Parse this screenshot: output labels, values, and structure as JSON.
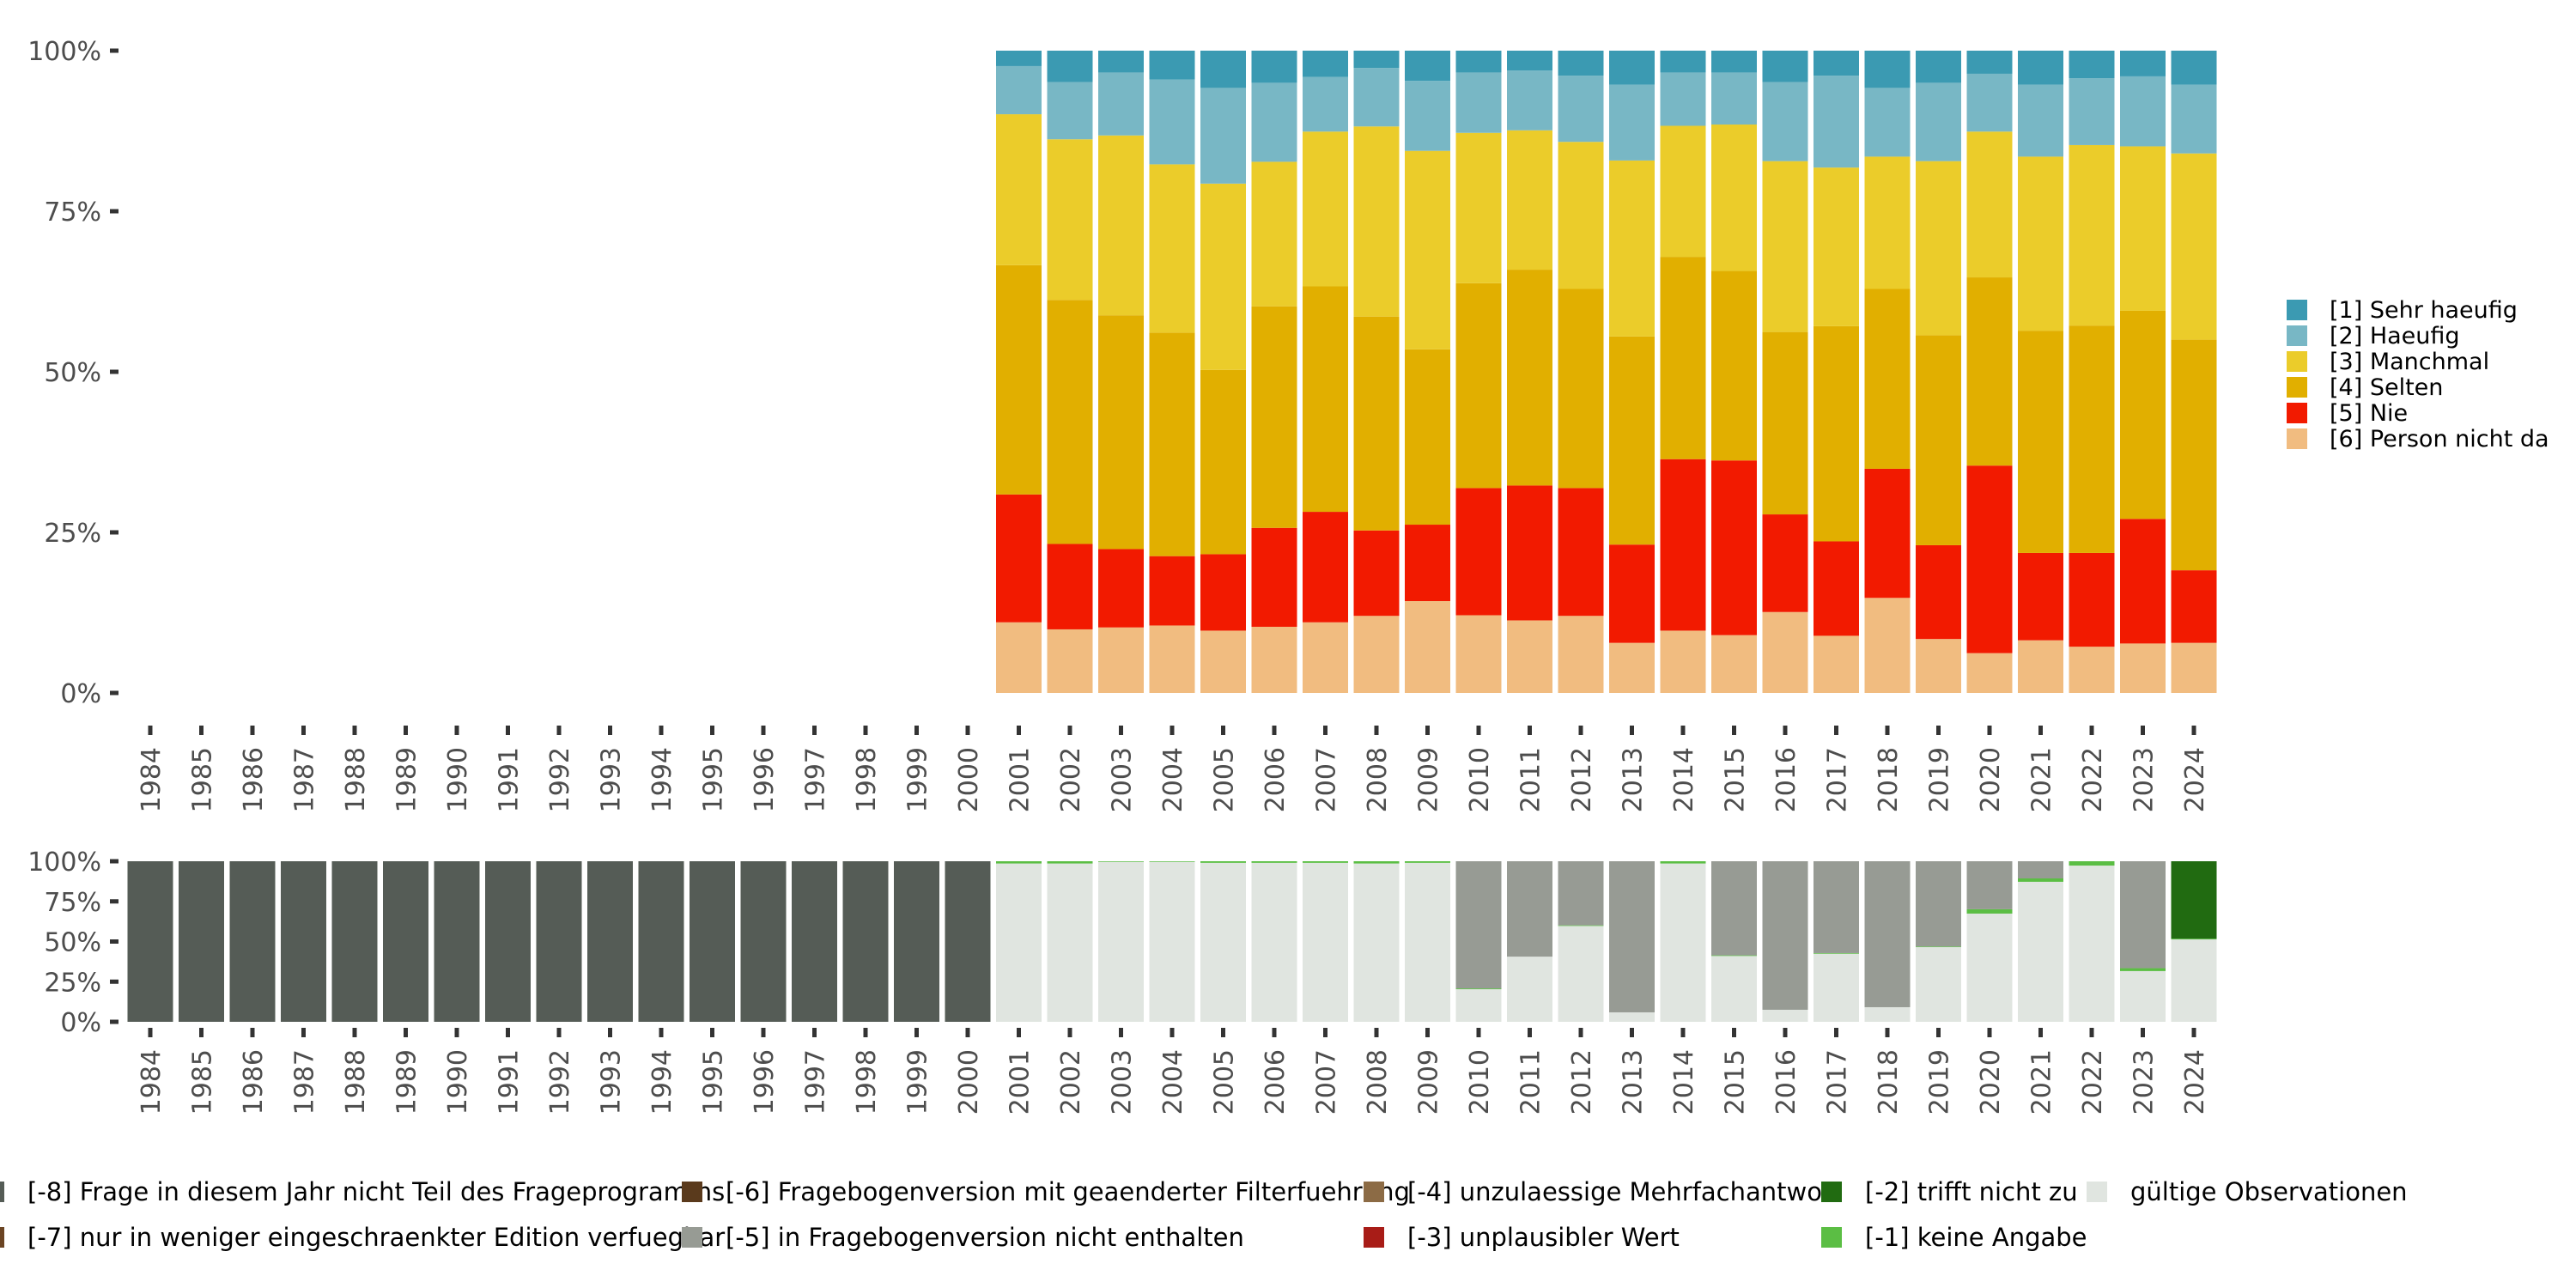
{
  "chart_data": [
    {
      "type": "bar",
      "stacked": true,
      "normalized": true,
      "title": "",
      "xlabel": "",
      "ylabel": "",
      "ylim": [
        0,
        100
      ],
      "yticks": [
        "0%",
        "25%",
        "50%",
        "75%",
        "100%"
      ],
      "grid": false,
      "legend_position": "right",
      "categories": [
        "1984",
        "1985",
        "1986",
        "1987",
        "1988",
        "1989",
        "1990",
        "1991",
        "1992",
        "1993",
        "1994",
        "1995",
        "1996",
        "1997",
        "1998",
        "1999",
        "2000",
        "2001",
        "2002",
        "2003",
        "2004",
        "2005",
        "2006",
        "2007",
        "2008",
        "2009",
        "2010",
        "2011",
        "2012",
        "2013",
        "2014",
        "2015",
        "2016",
        "2017",
        "2018",
        "2019",
        "2020",
        "2021",
        "2022",
        "2023",
        "2024"
      ],
      "series": [
        {
          "name": "[6] Person nicht da",
          "color": "#F1BC80",
          "values": [
            null,
            null,
            null,
            null,
            null,
            null,
            null,
            null,
            null,
            null,
            null,
            null,
            null,
            null,
            null,
            null,
            null,
            11.0,
            9.9,
            10.2,
            10.5,
            9.7,
            10.3,
            11.0,
            12.0,
            14.3,
            12.1,
            11.3,
            12.0,
            7.8,
            9.7,
            9.0,
            12.6,
            8.9,
            14.8,
            8.4,
            6.2,
            8.2,
            7.2,
            7.7,
            7.8
          ]
        },
        {
          "name": "[5] Nie",
          "color": "#F21A00",
          "values": [
            null,
            null,
            null,
            null,
            null,
            null,
            null,
            null,
            null,
            null,
            null,
            null,
            null,
            null,
            null,
            null,
            null,
            19.9,
            13.3,
            12.2,
            10.8,
            11.9,
            15.4,
            17.2,
            13.3,
            11.9,
            19.8,
            21.0,
            19.9,
            15.3,
            26.7,
            27.2,
            15.2,
            14.7,
            20.1,
            14.6,
            29.2,
            13.6,
            14.6,
            19.4,
            11.3
          ]
        },
        {
          "name": "[4] Selten",
          "color": "#E1AF00",
          "values": [
            null,
            null,
            null,
            null,
            null,
            null,
            null,
            null,
            null,
            null,
            null,
            null,
            null,
            null,
            null,
            null,
            null,
            35.7,
            38.0,
            36.4,
            34.8,
            28.7,
            34.5,
            35.1,
            33.3,
            27.3,
            31.9,
            33.6,
            31.0,
            32.4,
            31.5,
            29.5,
            28.4,
            33.5,
            28.0,
            32.7,
            29.3,
            34.6,
            35.4,
            32.4,
            35.9
          ]
        },
        {
          "name": "[3] Manchmal",
          "color": "#EBCC2A",
          "values": [
            null,
            null,
            null,
            null,
            null,
            null,
            null,
            null,
            null,
            null,
            null,
            null,
            null,
            null,
            null,
            null,
            null,
            23.5,
            25.0,
            28.0,
            26.2,
            29.0,
            22.5,
            24.1,
            29.6,
            30.9,
            23.4,
            21.7,
            22.9,
            27.4,
            20.4,
            22.8,
            26.6,
            24.7,
            20.6,
            27.1,
            22.7,
            27.1,
            28.1,
            25.6,
            29.0
          ]
        },
        {
          "name": "[2] Haeufig",
          "color": "#78B7C5",
          "values": [
            null,
            null,
            null,
            null,
            null,
            null,
            null,
            null,
            null,
            null,
            null,
            null,
            null,
            null,
            null,
            null,
            null,
            7.5,
            8.9,
            9.8,
            13.2,
            14.9,
            12.3,
            8.5,
            9.1,
            10.9,
            9.4,
            9.3,
            10.3,
            11.8,
            8.3,
            8.1,
            12.3,
            14.3,
            10.7,
            12.2,
            9.0,
            11.2,
            10.4,
            10.9,
            10.7
          ]
        },
        {
          "name": "[1] Sehr haeufig",
          "color": "#3B9AB2",
          "values": [
            null,
            null,
            null,
            null,
            null,
            null,
            null,
            null,
            null,
            null,
            null,
            null,
            null,
            null,
            null,
            null,
            null,
            2.4,
            4.9,
            3.4,
            4.5,
            5.8,
            5.0,
            4.1,
            2.7,
            4.7,
            3.4,
            3.1,
            3.9,
            5.3,
            3.4,
            3.4,
            4.9,
            3.9,
            5.8,
            5.0,
            3.6,
            5.3,
            4.3,
            4.0,
            5.3
          ]
        }
      ],
      "legend": [
        {
          "label": "[1] Sehr haeufig",
          "color": "#3B9AB2"
        },
        {
          "label": "[2] Haeufig",
          "color": "#78B7C5"
        },
        {
          "label": "[3] Manchmal",
          "color": "#EBCC2A"
        },
        {
          "label": "[4] Selten",
          "color": "#E1AF00"
        },
        {
          "label": "[5] Nie",
          "color": "#F21A00"
        },
        {
          "label": "[6] Person nicht da",
          "color": "#F1BC80"
        }
      ]
    },
    {
      "type": "bar",
      "stacked": true,
      "normalized": true,
      "title": "",
      "xlabel": "",
      "ylabel": "",
      "ylim": [
        0,
        100
      ],
      "yticks": [
        "0%",
        "25%",
        "50%",
        "75%",
        "100%"
      ],
      "grid": false,
      "legend_position": "bottom",
      "categories": [
        "1984",
        "1985",
        "1986",
        "1987",
        "1988",
        "1989",
        "1990",
        "1991",
        "1992",
        "1993",
        "1994",
        "1995",
        "1996",
        "1997",
        "1998",
        "1999",
        "2000",
        "2001",
        "2002",
        "2003",
        "2004",
        "2005",
        "2006",
        "2007",
        "2008",
        "2009",
        "2010",
        "2011",
        "2012",
        "2013",
        "2014",
        "2015",
        "2016",
        "2017",
        "2018",
        "2019",
        "2020",
        "2021",
        "2022",
        "2023",
        "2024"
      ],
      "series": [
        {
          "name": "gültige Observationen",
          "color": "#E0E5E0",
          "values": [
            0,
            0,
            0,
            0,
            0,
            0,
            0,
            0,
            0,
            0,
            0,
            0,
            0,
            0,
            0,
            0,
            0,
            98.6,
            98.6,
            99.6,
            99.6,
            99.0,
            99.0,
            99.0,
            98.6,
            99.0,
            20.3,
            40.6,
            59.7,
            5.9,
            98.6,
            41.0,
            7.5,
            42.4,
            9.1,
            46.5,
            67.4,
            87.2,
            97.3,
            31.6,
            51.3
          ]
        },
        {
          "name": "[-1] keine Angabe",
          "color": "#5BBE44",
          "values": [
            0,
            0,
            0,
            0,
            0,
            0,
            0,
            0,
            0,
            0,
            0,
            0,
            0,
            0,
            0,
            0,
            0,
            1.4,
            1.4,
            0.4,
            0.4,
            1.0,
            1.0,
            1.0,
            1.4,
            1.0,
            0.5,
            0,
            0.4,
            0,
            1.4,
            0.4,
            0,
            0.4,
            0,
            0.4,
            2.7,
            2.1,
            2.7,
            1.8,
            0.5
          ]
        },
        {
          "name": "[-2] trifft nicht zu",
          "color": "#216B11",
          "values": [
            0,
            0,
            0,
            0,
            0,
            0,
            0,
            0,
            0,
            0,
            0,
            0,
            0,
            0,
            0,
            0,
            0,
            0,
            0,
            0,
            0,
            0,
            0,
            0,
            0,
            0,
            0,
            0,
            0,
            0,
            0,
            0,
            0,
            0,
            0,
            0,
            0,
            0,
            0,
            0,
            48.2
          ]
        },
        {
          "name": "[-3] unplausibler Wert",
          "color": "#A81C17",
          "values": [
            0,
            0,
            0,
            0,
            0,
            0,
            0,
            0,
            0,
            0,
            0,
            0,
            0,
            0,
            0,
            0,
            0,
            0,
            0,
            0,
            0,
            0,
            0,
            0,
            0,
            0,
            0,
            0,
            0,
            0,
            0,
            0,
            0,
            0,
            0,
            0,
            0,
            0,
            0,
            0,
            0
          ]
        },
        {
          "name": "[-4] unzulaessige Mehrfachantwort",
          "color": "#8C6B45",
          "values": [
            0,
            0,
            0,
            0,
            0,
            0,
            0,
            0,
            0,
            0,
            0,
            0,
            0,
            0,
            0,
            0,
            0,
            0,
            0,
            0,
            0,
            0,
            0,
            0,
            0,
            0,
            0,
            0,
            0,
            0,
            0,
            0,
            0,
            0,
            0,
            0,
            0,
            0,
            0,
            0,
            0
          ]
        },
        {
          "name": "[-5] in Fragebogenversion nicht enthalten",
          "color": "#979B94",
          "values": [
            0,
            0,
            0,
            0,
            0,
            0,
            0,
            0,
            0,
            0,
            0,
            0,
            0,
            0,
            0,
            0,
            0,
            0,
            0,
            0,
            0,
            0,
            0,
            0,
            0,
            0,
            79.2,
            59.4,
            39.9,
            94.1,
            0,
            58.6,
            92.5,
            57.2,
            90.9,
            53.1,
            29.9,
            10.7,
            0,
            66.6,
            0
          ]
        },
        {
          "name": "[-6] Fragebogenversion mit geaenderter Filterfuehrung",
          "color": "#5A3A1C",
          "values": [
            0,
            0,
            0,
            0,
            0,
            0,
            0,
            0,
            0,
            0,
            0,
            0,
            0,
            0,
            0,
            0,
            0,
            0,
            0,
            0,
            0,
            0,
            0,
            0,
            0,
            0,
            0,
            0,
            0,
            0,
            0,
            0,
            0,
            0,
            0,
            0,
            0,
            0,
            0,
            0,
            0
          ]
        },
        {
          "name": "[-7] nur in weniger eingeschraenkter Edition verfuegbar",
          "color": "#6B4423",
          "values": [
            0,
            0,
            0,
            0,
            0,
            0,
            0,
            0,
            0,
            0,
            0,
            0,
            0,
            0,
            0,
            0,
            0,
            0,
            0,
            0,
            0,
            0,
            0,
            0,
            0,
            0,
            0,
            0,
            0,
            0,
            0,
            0,
            0,
            0,
            0,
            0,
            0,
            0,
            0,
            0,
            0
          ]
        },
        {
          "name": "[-8] Frage in diesem Jahr nicht Teil des Frageprogramms",
          "color": "#555C56",
          "values": [
            100,
            100,
            100,
            100,
            100,
            100,
            100,
            100,
            100,
            100,
            100,
            100,
            100,
            100,
            100,
            100,
            100,
            0,
            0,
            0,
            0,
            0,
            0,
            0,
            0,
            0,
            0,
            0,
            0,
            0,
            0,
            0,
            0,
            0,
            0,
            0,
            0,
            0,
            0,
            0,
            0
          ]
        }
      ],
      "legend": [
        {
          "label": "[-8] Frage in diesem Jahr nicht Teil des Frageprogramms",
          "color": "#555C56"
        },
        {
          "label": "[-7] nur in weniger eingeschraenkter Edition verfuegbar",
          "color": "#6B4423"
        },
        {
          "label": "[-6] Fragebogenversion mit geaenderter Filterfuehrung",
          "color": "#5A3A1C"
        },
        {
          "label": "[-5] in Fragebogenversion nicht enthalten",
          "color": "#979B94"
        },
        {
          "label": "[-4] unzulaessige Mehrfachantwort",
          "color": "#8C6B45"
        },
        {
          "label": "[-3] unplausibler Wert",
          "color": "#A81C17"
        },
        {
          "label": "[-2] trifft nicht zu",
          "color": "#216B11"
        },
        {
          "label": "[-1] keine Angabe",
          "color": "#5BBE44"
        },
        {
          "label": "gültige Observationen",
          "color": "#E0E5E0"
        }
      ]
    }
  ]
}
